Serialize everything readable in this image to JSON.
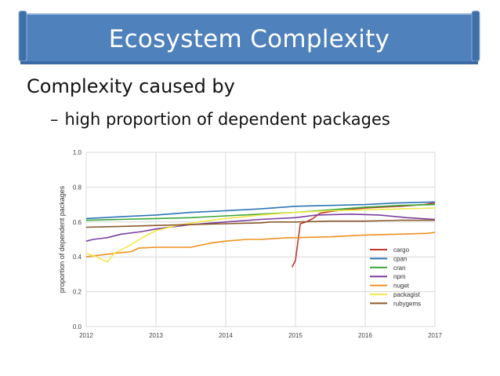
{
  "slide": {
    "title": "Ecosystem Complexity",
    "bullet1": "Complexity caused by",
    "bullet2_dash": "–",
    "bullet2": "high proportion of dependent packages"
  },
  "colors": {
    "banner_fill": "#4f81bd",
    "banner_stroke": "#8fb0da"
  },
  "chart_data": {
    "type": "line",
    "title": "",
    "xlabel": "",
    "ylabel": "proportion of dependent packages",
    "xlim": [
      2012,
      2017
    ],
    "ylim": [
      0.0,
      1.0
    ],
    "x_ticks": [
      "2012",
      "2013",
      "2014",
      "2015",
      "2016",
      "2017"
    ],
    "y_ticks": [
      "0.0",
      "0.2",
      "0.4",
      "0.6",
      "0.8",
      "1.0"
    ],
    "grid": true,
    "legend_position": "bottom-right",
    "series": [
      {
        "name": "cargo",
        "color": "#c0392b",
        "points": [
          [
            2014.95,
            0.34
          ],
          [
            2015.0,
            0.38
          ],
          [
            2015.07,
            0.59
          ],
          [
            2015.15,
            0.6
          ],
          [
            2015.25,
            0.62
          ],
          [
            2015.35,
            0.65
          ],
          [
            2015.5,
            0.66
          ],
          [
            2015.7,
            0.67
          ],
          [
            2016.0,
            0.68
          ],
          [
            2016.5,
            0.69
          ],
          [
            2016.85,
            0.7
          ],
          [
            2017.0,
            0.71
          ]
        ]
      },
      {
        "name": "cpan",
        "color": "#2e75b6",
        "points": [
          [
            2012.0,
            0.62
          ],
          [
            2012.5,
            0.63
          ],
          [
            2013.0,
            0.64
          ],
          [
            2013.5,
            0.655
          ],
          [
            2014.0,
            0.665
          ],
          [
            2014.5,
            0.675
          ],
          [
            2015.0,
            0.69
          ],
          [
            2015.5,
            0.695
          ],
          [
            2016.0,
            0.7
          ],
          [
            2016.5,
            0.71
          ],
          [
            2017.0,
            0.715
          ]
        ]
      },
      {
        "name": "cran",
        "color": "#3aa63a",
        "points": [
          [
            2012.0,
            0.61
          ],
          [
            2012.5,
            0.615
          ],
          [
            2013.0,
            0.62
          ],
          [
            2013.5,
            0.625
          ],
          [
            2014.0,
            0.635
          ],
          [
            2014.5,
            0.645
          ],
          [
            2015.0,
            0.655
          ],
          [
            2015.5,
            0.67
          ],
          [
            2016.0,
            0.685
          ],
          [
            2016.5,
            0.695
          ],
          [
            2017.0,
            0.7
          ]
        ]
      },
      {
        "name": "npm",
        "color": "#7b3f9e",
        "points": [
          [
            2012.0,
            0.49
          ],
          [
            2012.1,
            0.5
          ],
          [
            2012.3,
            0.51
          ],
          [
            2012.5,
            0.53
          ],
          [
            2012.8,
            0.545
          ],
          [
            2013.0,
            0.56
          ],
          [
            2013.5,
            0.585
          ],
          [
            2014.0,
            0.6
          ],
          [
            2014.5,
            0.615
          ],
          [
            2015.0,
            0.625
          ],
          [
            2015.3,
            0.64
          ],
          [
            2015.8,
            0.645
          ],
          [
            2016.2,
            0.64
          ],
          [
            2016.6,
            0.625
          ],
          [
            2017.0,
            0.615
          ]
        ]
      },
      {
        "name": "nuget",
        "color": "#f0901f",
        "points": [
          [
            2012.0,
            0.4
          ],
          [
            2012.4,
            0.42
          ],
          [
            2012.65,
            0.43
          ],
          [
            2012.75,
            0.45
          ],
          [
            2013.0,
            0.455
          ],
          [
            2013.5,
            0.455
          ],
          [
            2013.8,
            0.48
          ],
          [
            2014.0,
            0.49
          ],
          [
            2014.3,
            0.5
          ],
          [
            2014.5,
            0.5
          ],
          [
            2014.9,
            0.51
          ],
          [
            2015.0,
            0.51
          ],
          [
            2015.5,
            0.515
          ],
          [
            2016.0,
            0.525
          ],
          [
            2016.5,
            0.53
          ],
          [
            2016.9,
            0.535
          ],
          [
            2017.0,
            0.54
          ]
        ]
      },
      {
        "name": "packagist",
        "color": "#f2e84a",
        "points": [
          [
            2012.0,
            0.42
          ],
          [
            2012.15,
            0.4
          ],
          [
            2012.3,
            0.37
          ],
          [
            2012.4,
            0.42
          ],
          [
            2012.6,
            0.46
          ],
          [
            2012.85,
            0.52
          ],
          [
            2013.0,
            0.55
          ],
          [
            2013.3,
            0.58
          ],
          [
            2013.6,
            0.6
          ],
          [
            2014.0,
            0.62
          ],
          [
            2014.5,
            0.64
          ],
          [
            2015.0,
            0.655
          ],
          [
            2015.5,
            0.665
          ],
          [
            2016.0,
            0.67
          ],
          [
            2016.5,
            0.675
          ],
          [
            2017.0,
            0.68
          ]
        ]
      },
      {
        "name": "rubygems",
        "color": "#8b5a2b",
        "points": [
          [
            2012.0,
            0.57
          ],
          [
            2012.5,
            0.575
          ],
          [
            2013.0,
            0.58
          ],
          [
            2013.5,
            0.585
          ],
          [
            2014.0,
            0.59
          ],
          [
            2014.5,
            0.595
          ],
          [
            2014.65,
            0.6
          ],
          [
            2015.0,
            0.6
          ],
          [
            2015.5,
            0.605
          ],
          [
            2016.0,
            0.605
          ],
          [
            2016.5,
            0.61
          ],
          [
            2017.0,
            0.61
          ]
        ]
      }
    ]
  }
}
